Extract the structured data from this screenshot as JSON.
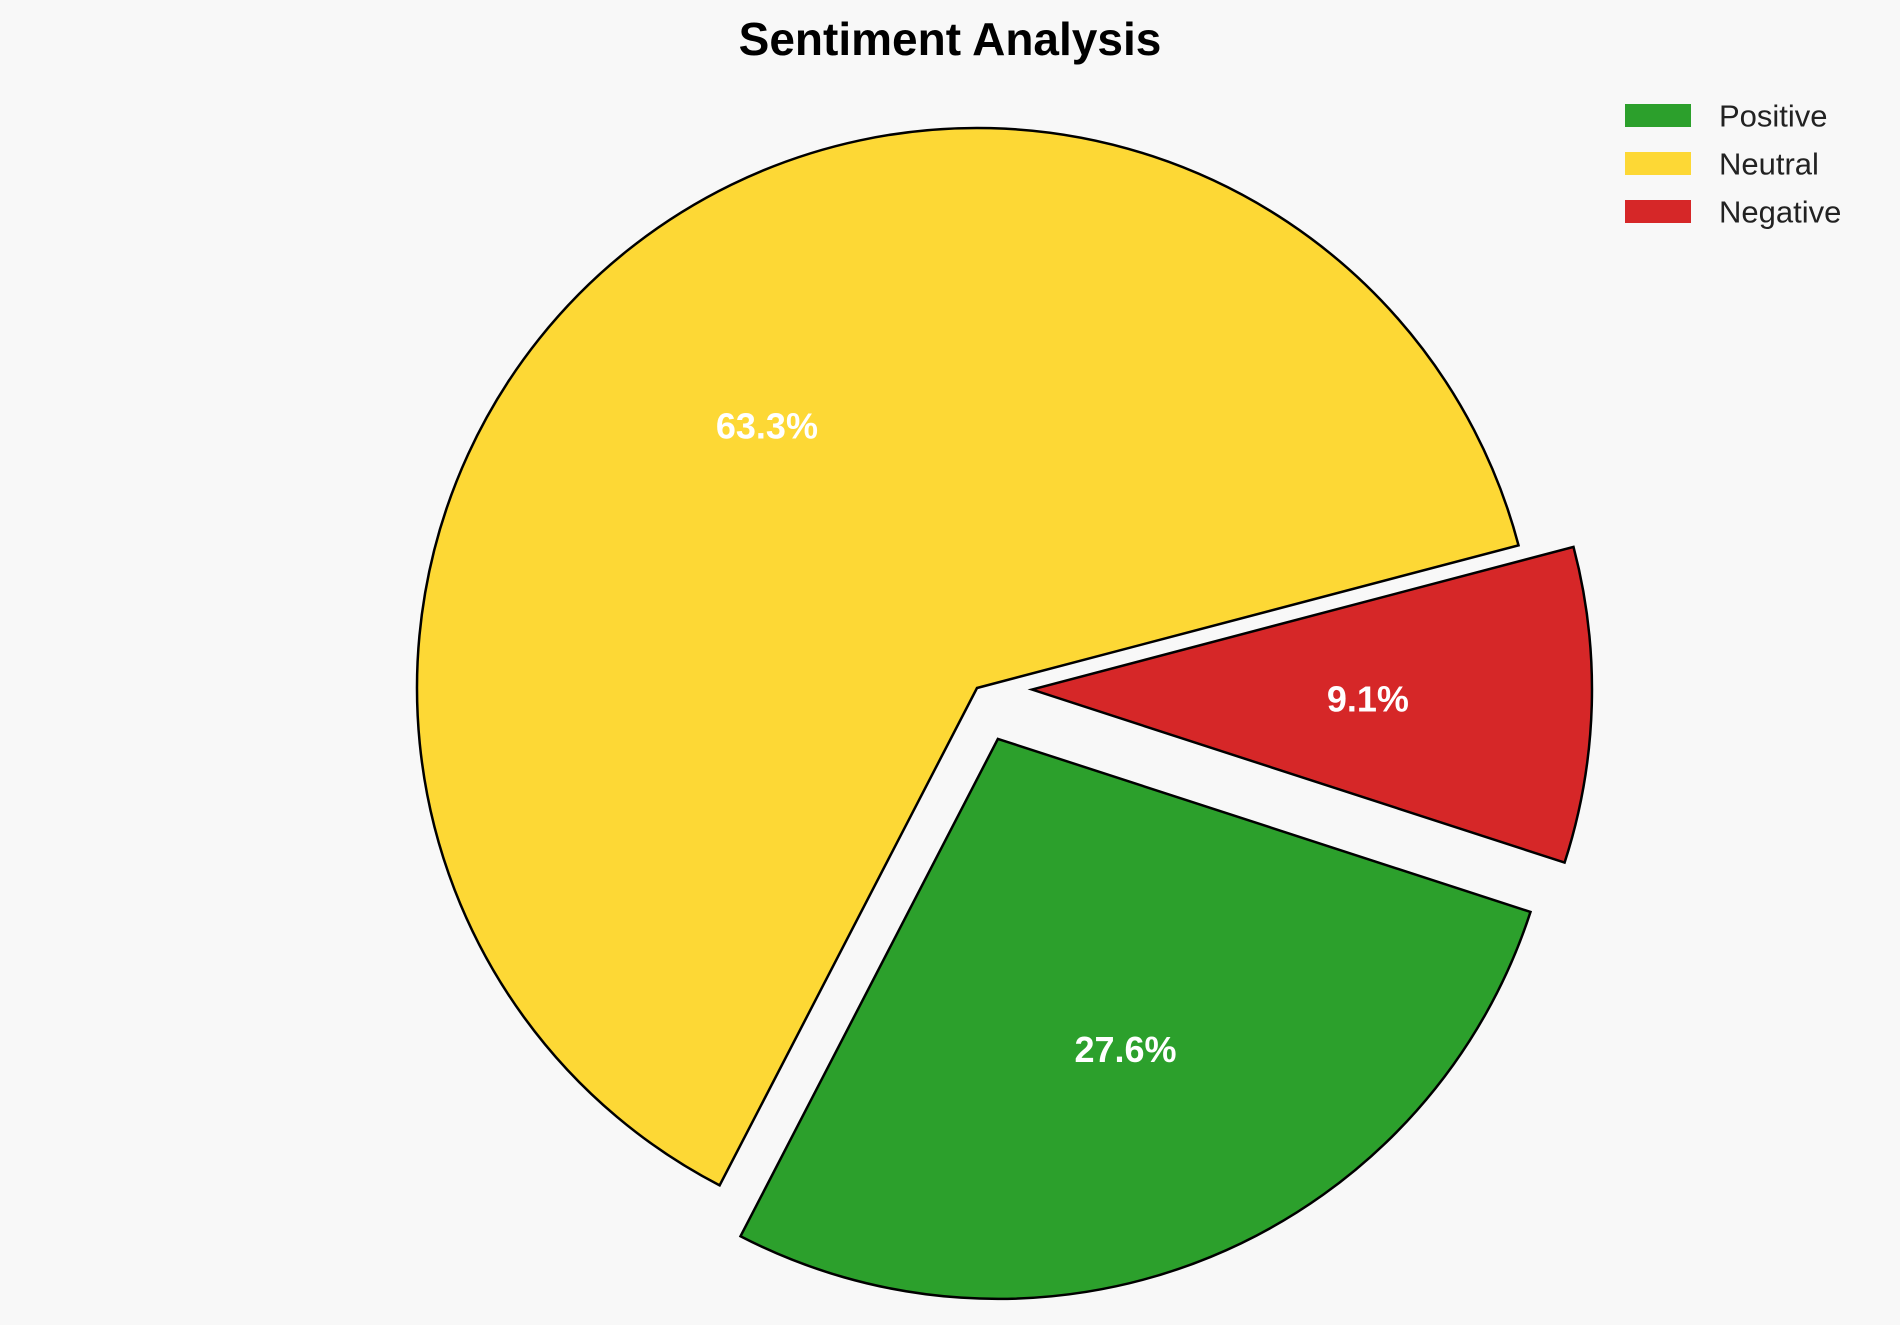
{
  "chart_data": {
    "type": "pie",
    "title": "Sentiment Analysis",
    "labels": [
      "Positive",
      "Neutral",
      "Negative"
    ],
    "values": [
      27.6,
      63.3,
      9.1
    ],
    "value_labels": [
      "27.6%",
      "63.3%",
      "9.1%"
    ],
    "colors": [
      "#2ca02c",
      "#fdd835",
      "#d62728"
    ],
    "exploded": true,
    "legend_position": "top-right"
  }
}
